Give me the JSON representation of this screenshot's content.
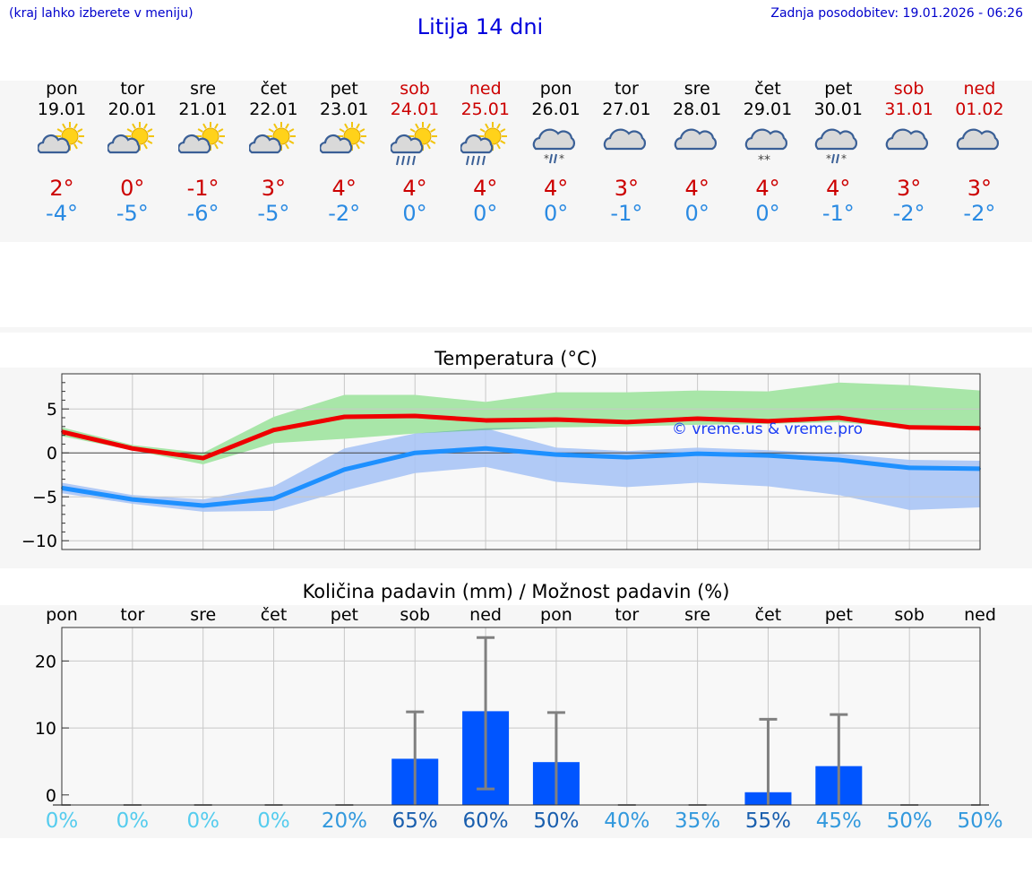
{
  "header": {
    "hint": "(kraj lahko izberete v meniju)",
    "title": "Litija 14 dni",
    "updated": "Zadnja posodobitev: 19.01.2026 - 06:26"
  },
  "days": [
    {
      "name": "pon",
      "date": "19.01",
      "weekend": false,
      "icon": "sun-cloud-icon",
      "tmax": "2°",
      "tmin": "-4°"
    },
    {
      "name": "tor",
      "date": "20.01",
      "weekend": false,
      "icon": "sun-cloud-icon",
      "tmax": "0°",
      "tmin": "-5°"
    },
    {
      "name": "sre",
      "date": "21.01",
      "weekend": false,
      "icon": "sun-cloud-icon",
      "tmax": "-1°",
      "tmin": "-6°"
    },
    {
      "name": "čet",
      "date": "22.01",
      "weekend": false,
      "icon": "sun-cloud-icon",
      "tmax": "3°",
      "tmin": "-5°"
    },
    {
      "name": "pet",
      "date": "23.01",
      "weekend": false,
      "icon": "sun-cloud-icon",
      "tmax": "4°",
      "tmin": "-2°"
    },
    {
      "name": "sob",
      "date": "24.01",
      "weekend": true,
      "icon": "sun-cloud-rain-icon",
      "tmax": "4°",
      "tmin": "0°"
    },
    {
      "name": "ned",
      "date": "25.01",
      "weekend": true,
      "icon": "sun-cloud-rain-icon",
      "tmax": "4°",
      "tmin": "0°"
    },
    {
      "name": "pon",
      "date": "26.01",
      "weekend": false,
      "icon": "cloud-sleet-icon",
      "tmax": "4°",
      "tmin": "0°"
    },
    {
      "name": "tor",
      "date": "27.01",
      "weekend": false,
      "icon": "cloud-icon",
      "tmax": "3°",
      "tmin": "-1°"
    },
    {
      "name": "sre",
      "date": "28.01",
      "weekend": false,
      "icon": "cloud-icon",
      "tmax": "4°",
      "tmin": "0°"
    },
    {
      "name": "čet",
      "date": "29.01",
      "weekend": false,
      "icon": "cloud-snow-icon",
      "tmax": "4°",
      "tmin": "0°"
    },
    {
      "name": "pet",
      "date": "30.01",
      "weekend": false,
      "icon": "cloud-sleet-icon",
      "tmax": "4°",
      "tmin": "-1°"
    },
    {
      "name": "sob",
      "date": "31.01",
      "weekend": true,
      "icon": "cloud-icon",
      "tmax": "3°",
      "tmin": "-2°"
    },
    {
      "name": "ned",
      "date": "01.02",
      "weekend": true,
      "icon": "cloud-icon",
      "tmax": "3°",
      "tmin": "-2°"
    }
  ],
  "colors": {
    "max_line": "#ee0000",
    "min_line": "#1e90ff",
    "max_band": "#a8e6a8",
    "min_band": "#a9c4f5",
    "overlap_band": "#7cc5a6",
    "bar": "#0055ff",
    "whisker": "#808080",
    "grid": "#c8c8c8",
    "pct_low": "#55ccee",
    "pct_mid": "#3399dd",
    "pct_high": "#1a5fae"
  },
  "chart_data": [
    {
      "type": "line",
      "title": "Temperatura (°C)",
      "watermark": "© vreme.us & vreme.pro",
      "ylim": [
        -11,
        9
      ],
      "yticks": [
        -10,
        -5,
        0,
        5
      ],
      "x": [
        0,
        1,
        2,
        3,
        4,
        5,
        6,
        7,
        8,
        9,
        10,
        11,
        12,
        13
      ],
      "series": [
        {
          "name": "max",
          "values": [
            2.4,
            0.5,
            -0.6,
            2.6,
            4.1,
            4.2,
            3.7,
            3.8,
            3.5,
            3.9,
            3.6,
            4.0,
            2.9,
            2.8
          ]
        },
        {
          "name": "min",
          "values": [
            -4.0,
            -5.3,
            -6.0,
            -5.2,
            -1.9,
            0.0,
            0.5,
            -0.2,
            -0.5,
            -0.1,
            -0.3,
            -0.8,
            -1.7,
            -1.8
          ]
        }
      ],
      "bands": [
        {
          "name": "max-range",
          "low": [
            1.9,
            0.3,
            -1.3,
            1.1,
            1.6,
            2.2,
            2.6,
            2.9,
            3.0,
            3.2,
            3.3,
            3.5,
            2.8,
            2.6
          ],
          "high": [
            2.9,
            0.9,
            0.0,
            4.1,
            6.6,
            6.6,
            5.8,
            6.9,
            6.9,
            7.1,
            7.0,
            8.0,
            7.7,
            7.1
          ]
        },
        {
          "name": "min-range",
          "low": [
            -4.6,
            -5.8,
            -6.7,
            -6.6,
            -4.3,
            -2.3,
            -1.6,
            -3.3,
            -3.9,
            -3.4,
            -3.8,
            -4.8,
            -6.5,
            -6.2
          ],
          "high": [
            -3.4,
            -4.8,
            -5.3,
            -3.8,
            0.5,
            2.2,
            2.8,
            0.6,
            0.2,
            0.6,
            0.3,
            -0.1,
            -0.8,
            -0.9
          ]
        }
      ]
    },
    {
      "type": "bar",
      "title": "Količina padavin (mm) / Možnost padavin (%)",
      "ylim": [
        -1.5,
        25
      ],
      "yticks": [
        0,
        10,
        20
      ],
      "categories": [
        "pon",
        "tor",
        "sre",
        "čet",
        "pet",
        "sob",
        "ned",
        "pon",
        "tor",
        "sre",
        "čet",
        "pet",
        "sob",
        "ned"
      ],
      "values": [
        0,
        0,
        0,
        0,
        0,
        5.4,
        12.5,
        4.9,
        0,
        0,
        0.4,
        4.3,
        0,
        0
      ],
      "error_high": [
        0,
        0,
        0,
        0,
        0,
        12.4,
        23.5,
        12.3,
        0,
        0,
        11.3,
        12.0,
        0,
        0
      ],
      "error_low": [
        0,
        0,
        0,
        0,
        0,
        0,
        0.9,
        0,
        0,
        0,
        0,
        0,
        0,
        0
      ],
      "probability": [
        "0%",
        "0%",
        "0%",
        "0%",
        "20%",
        "65%",
        "60%",
        "50%",
        "40%",
        "35%",
        "55%",
        "45%",
        "50%",
        "50%"
      ]
    }
  ]
}
